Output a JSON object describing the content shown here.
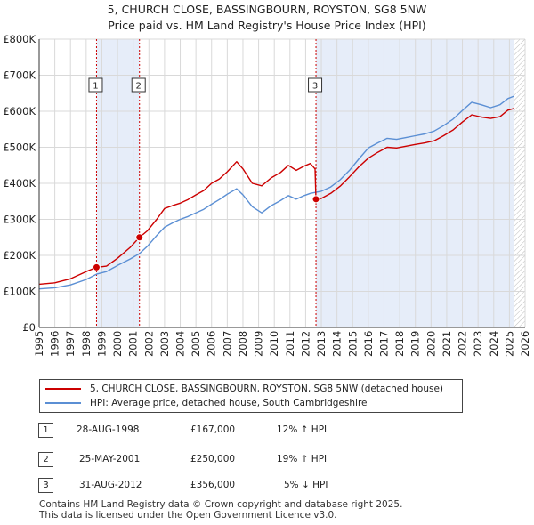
{
  "title_line1": "5, CHURCH CLOSE, BASSINGBOURN, ROYSTON, SG8 5NW",
  "title_line2": "Price paid vs. HM Land Registry's House Price Index (HPI)",
  "colors": {
    "property": "#cc0000",
    "hpi": "#5b8fd4",
    "shade": "#e6edf9",
    "grid": "#d9d9d9"
  },
  "chart_data": {
    "type": "line",
    "title": "5, CHURCH CLOSE, BASSINGBOURN, ROYSTON, SG8 5NW — Price paid vs. HM Land Registry's House Price Index (HPI)",
    "xlim": [
      1995,
      2026
    ],
    "ylim": [
      0,
      800000
    ],
    "x_ticks": [
      "1995",
      "1996",
      "1997",
      "1998",
      "1999",
      "2000",
      "2001",
      "2002",
      "2003",
      "2004",
      "2005",
      "2006",
      "2007",
      "2008",
      "2009",
      "2010",
      "2011",
      "2012",
      "2013",
      "2014",
      "2015",
      "2016",
      "2017",
      "2018",
      "2019",
      "2020",
      "2021",
      "2022",
      "2023",
      "2024",
      "2025",
      "2026"
    ],
    "y_ticks": [
      {
        "value": 0,
        "label": "£0"
      },
      {
        "value": 100000,
        "label": "£100K"
      },
      {
        "value": 200000,
        "label": "£200K"
      },
      {
        "value": 300000,
        "label": "£300K"
      },
      {
        "value": 400000,
        "label": "£400K"
      },
      {
        "value": 500000,
        "label": "£500K"
      },
      {
        "value": 600000,
        "label": "£600K"
      },
      {
        "value": 700000,
        "label": "£700K"
      },
      {
        "value": 800000,
        "label": "£800K"
      }
    ],
    "series": [
      {
        "name": "5, CHURCH CLOSE, BASSINGBOURN, ROYSTON, SG8 5NW (detached house)",
        "color": "#cc0000",
        "points": [
          [
            1995.0,
            120000
          ],
          [
            1996.0,
            124000
          ],
          [
            1997.0,
            135000
          ],
          [
            1998.0,
            155000
          ],
          [
            1998.66,
            167000
          ],
          [
            1999.3,
            170000
          ],
          [
            2000.0,
            192000
          ],
          [
            2000.8,
            222000
          ],
          [
            2001.4,
            250000
          ],
          [
            2001.9,
            268000
          ],
          [
            2002.5,
            300000
          ],
          [
            2003.0,
            330000
          ],
          [
            2003.5,
            338000
          ],
          [
            2004.0,
            345000
          ],
          [
            2004.5,
            355000
          ],
          [
            2005.0,
            368000
          ],
          [
            2005.5,
            380000
          ],
          [
            2006.0,
            400000
          ],
          [
            2006.5,
            412000
          ],
          [
            2007.0,
            432000
          ],
          [
            2007.6,
            460000
          ],
          [
            2008.0,
            440000
          ],
          [
            2008.6,
            400000
          ],
          [
            2009.2,
            393000
          ],
          [
            2009.8,
            415000
          ],
          [
            2010.4,
            430000
          ],
          [
            2010.9,
            450000
          ],
          [
            2011.4,
            436000
          ],
          [
            2011.9,
            448000
          ],
          [
            2012.3,
            455000
          ],
          [
            2012.6,
            440000
          ],
          [
            2012.66,
            356000
          ],
          [
            2013.0,
            358000
          ],
          [
            2013.6,
            372000
          ],
          [
            2014.2,
            392000
          ],
          [
            2014.8,
            418000
          ],
          [
            2015.4,
            446000
          ],
          [
            2016.0,
            470000
          ],
          [
            2016.6,
            486000
          ],
          [
            2017.2,
            500000
          ],
          [
            2017.8,
            498000
          ],
          [
            2018.4,
            503000
          ],
          [
            2019.0,
            508000
          ],
          [
            2019.6,
            512000
          ],
          [
            2020.2,
            518000
          ],
          [
            2020.8,
            532000
          ],
          [
            2021.4,
            548000
          ],
          [
            2022.0,
            570000
          ],
          [
            2022.6,
            590000
          ],
          [
            2023.2,
            584000
          ],
          [
            2023.8,
            580000
          ],
          [
            2024.4,
            585000
          ],
          [
            2024.9,
            603000
          ],
          [
            2025.3,
            608000
          ]
        ]
      },
      {
        "name": "HPI: Average price, detached house, South Cambridgeshire",
        "color": "#5b8fd4",
        "points": [
          [
            1995.0,
            107000
          ],
          [
            1996.0,
            110000
          ],
          [
            1997.0,
            118000
          ],
          [
            1998.0,
            133000
          ],
          [
            1998.66,
            148000
          ],
          [
            1999.3,
            155000
          ],
          [
            2000.0,
            172000
          ],
          [
            2000.8,
            190000
          ],
          [
            2001.4,
            205000
          ],
          [
            2001.9,
            225000
          ],
          [
            2002.5,
            255000
          ],
          [
            2003.0,
            278000
          ],
          [
            2003.5,
            290000
          ],
          [
            2004.0,
            300000
          ],
          [
            2004.5,
            308000
          ],
          [
            2005.0,
            318000
          ],
          [
            2005.5,
            328000
          ],
          [
            2006.0,
            342000
          ],
          [
            2006.5,
            355000
          ],
          [
            2007.0,
            370000
          ],
          [
            2007.6,
            385000
          ],
          [
            2008.0,
            368000
          ],
          [
            2008.6,
            335000
          ],
          [
            2009.2,
            318000
          ],
          [
            2009.8,
            338000
          ],
          [
            2010.4,
            352000
          ],
          [
            2010.9,
            366000
          ],
          [
            2011.4,
            356000
          ],
          [
            2011.9,
            366000
          ],
          [
            2012.3,
            372000
          ],
          [
            2012.66,
            375000
          ],
          [
            2013.0,
            378000
          ],
          [
            2013.6,
            390000
          ],
          [
            2014.2,
            410000
          ],
          [
            2014.8,
            436000
          ],
          [
            2015.4,
            468000
          ],
          [
            2016.0,
            498000
          ],
          [
            2016.6,
            512000
          ],
          [
            2017.2,
            525000
          ],
          [
            2017.8,
            522000
          ],
          [
            2018.4,
            527000
          ],
          [
            2019.0,
            532000
          ],
          [
            2019.6,
            537000
          ],
          [
            2020.2,
            545000
          ],
          [
            2020.8,
            560000
          ],
          [
            2021.4,
            578000
          ],
          [
            2022.0,
            602000
          ],
          [
            2022.6,
            625000
          ],
          [
            2023.2,
            618000
          ],
          [
            2023.8,
            610000
          ],
          [
            2024.4,
            618000
          ],
          [
            2024.9,
            635000
          ],
          [
            2025.3,
            642000
          ]
        ]
      }
    ],
    "transactions": [
      {
        "id": "1",
        "x": 1998.66,
        "price": 167000
      },
      {
        "id": "2",
        "x": 2001.4,
        "price": 250000
      },
      {
        "id": "3",
        "x": 2012.66,
        "price": 356000
      }
    ],
    "shaded_ranges": [
      [
        1998.66,
        2001.4
      ],
      [
        2012.66,
        2025.3
      ]
    ],
    "forecast_from": 2025.3
  },
  "legend": {
    "property_label": "5, CHURCH CLOSE, BASSINGBOURN, ROYSTON, SG8 5NW (detached house)",
    "hpi_label": "HPI: Average price, detached house, South Cambridgeshire"
  },
  "transactions_table": [
    {
      "num": "1",
      "date": "28-AUG-1998",
      "price": "£167,000",
      "hpi": "12% ↑ HPI"
    },
    {
      "num": "2",
      "date": "25-MAY-2001",
      "price": "£250,000",
      "hpi": "19% ↑ HPI"
    },
    {
      "num": "3",
      "date": "31-AUG-2012",
      "price": "£356,000",
      "hpi": "5% ↓ HPI"
    }
  ],
  "footer_line1": "Contains HM Land Registry data © Crown copyright and database right 2025.",
  "footer_line2": "This data is licensed under the Open Government Licence v3.0."
}
